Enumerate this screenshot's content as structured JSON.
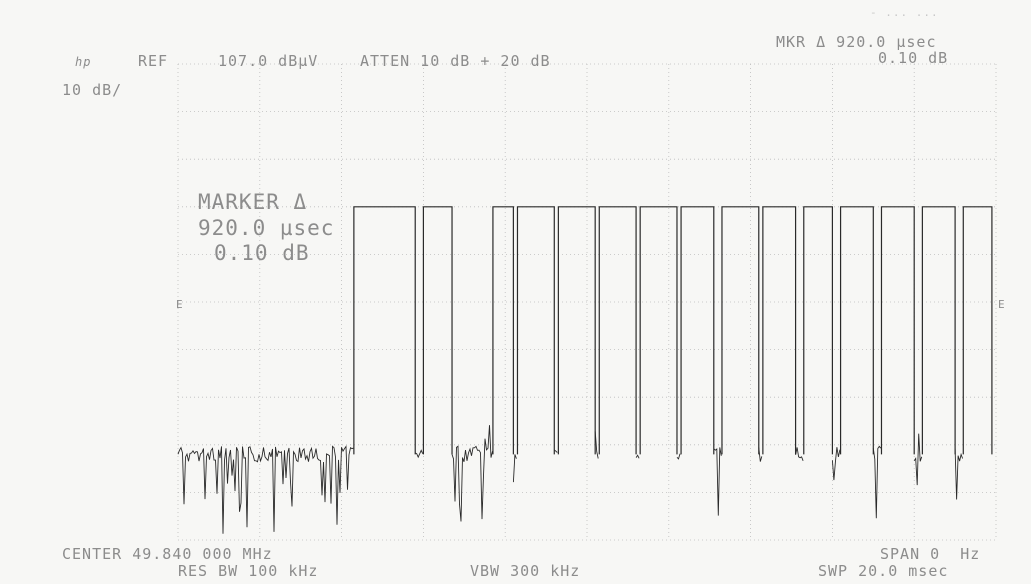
{
  "header": {
    "ref_label": "REF",
    "ref_value": "107.0 dBµV",
    "atten": "ATTEN 10 dB + 20 dB",
    "mkr_line1": "MKR Δ 920.0 µsec",
    "mkr_line2": "0.10 dB",
    "corner_text": "- ... ...",
    "log_mark": "hp",
    "scale": "10 dB/"
  },
  "marker_annotation": {
    "title": "MARKER Δ",
    "time": "920.0 µsec",
    "level": "0.10 dB"
  },
  "grid_labels": {
    "left_e": "E",
    "right_e": "E"
  },
  "footer": {
    "center": "CENTER 49.840 000 MHz",
    "res_bw": "RES BW 100 kHz",
    "vbw": "VBW 300 kHz",
    "span": "SPAN 0  Hz",
    "swp": "SWP 20.0 msec"
  },
  "colors": {
    "trace": "#2a2a2a",
    "grid": "#bdbdbd",
    "background": "#f7f7f5"
  },
  "chart_data": {
    "type": "line",
    "title": "",
    "xlabel": "",
    "ylabel": "",
    "x_unit": "msec",
    "y_unit": "dBµV",
    "xlim": [
      0,
      20
    ],
    "ylim": [
      7,
      107
    ],
    "grid": true,
    "series": [
      {
        "values_note": "zero-span time-domain trace: high level between pulses (approx 0.10 dB marker delta), noise floor elsewhere",
        "high_level_dbuv": 77,
        "noise_floor_dbuv": 25,
        "pulse_segments_msec": [
          [
            4.3,
            5.8
          ],
          [
            6.0,
            6.7
          ],
          [
            7.7,
            8.2
          ],
          [
            8.3,
            9.2
          ],
          [
            9.3,
            10.2
          ],
          [
            10.3,
            11.2
          ],
          [
            11.3,
            12.2
          ],
          [
            12.3,
            13.1
          ],
          [
            13.3,
            14.2
          ],
          [
            14.3,
            15.1
          ],
          [
            15.3,
            16.0
          ],
          [
            16.2,
            17.0
          ],
          [
            17.2,
            18.0
          ],
          [
            18.2,
            19.0
          ],
          [
            19.2,
            19.9
          ]
        ]
      }
    ],
    "marker_delta_time": "920.0 µsec",
    "marker_delta_level": "0.10 dB"
  }
}
